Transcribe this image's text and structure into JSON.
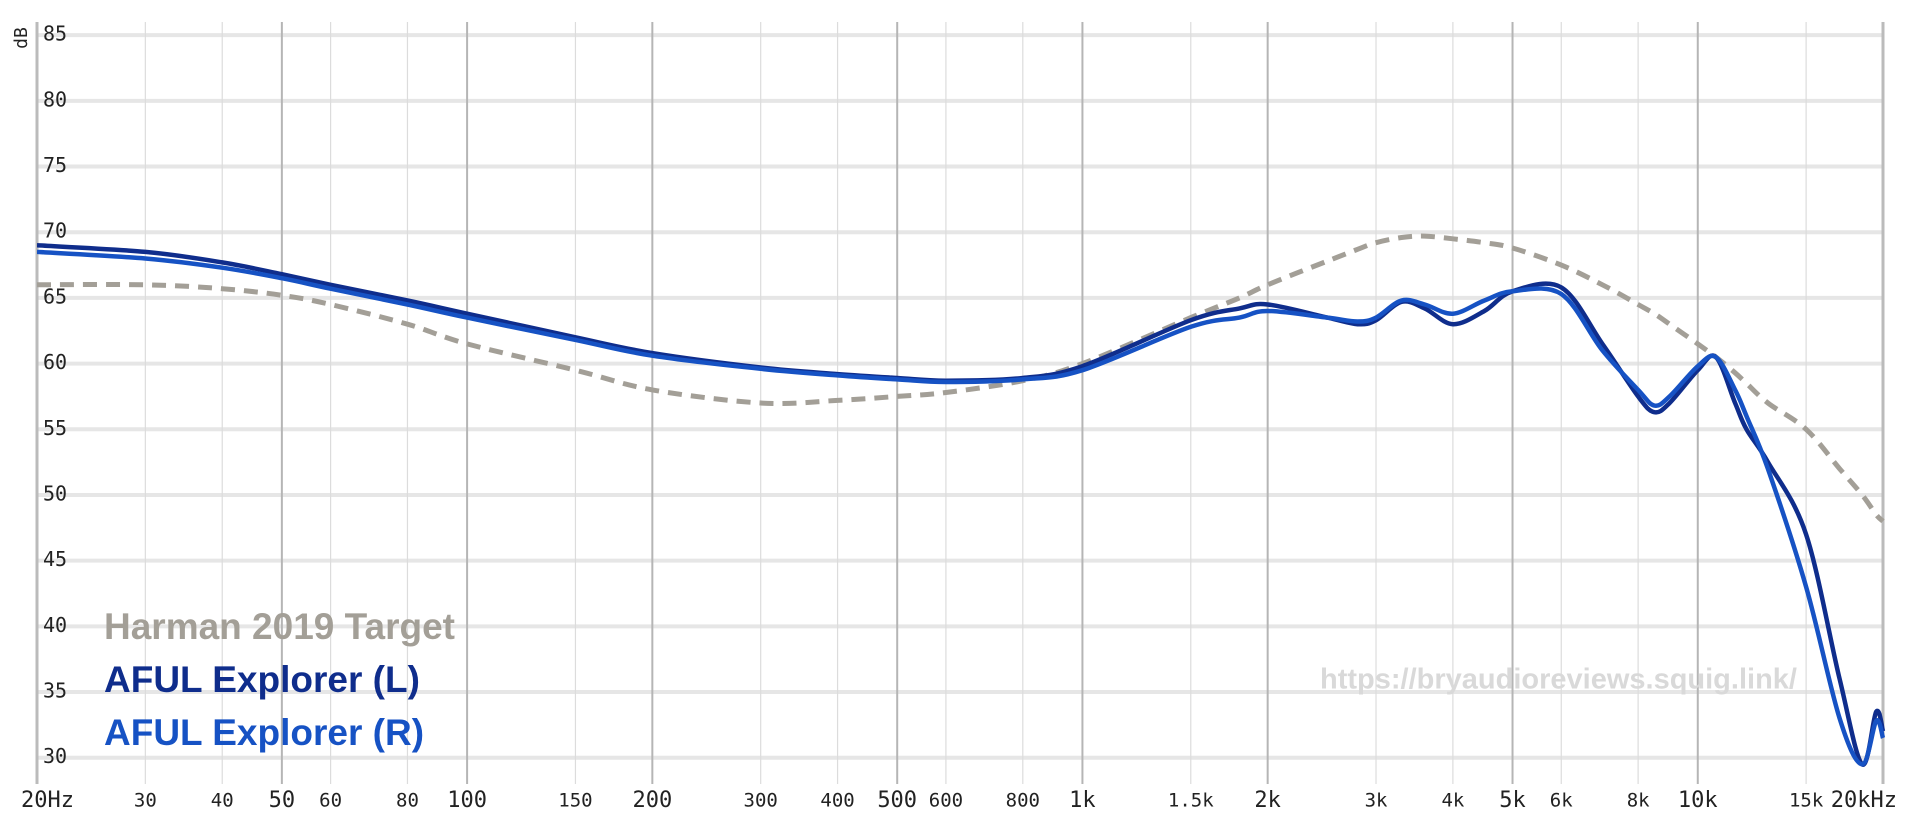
{
  "chart_data": {
    "type": "line",
    "ylabel": "dB",
    "watermark": "https://bryaudioreviews.squig.link/",
    "log_x": true,
    "grid": true,
    "x": [
      20,
      30,
      40,
      50,
      60,
      80,
      100,
      150,
      200,
      300,
      400,
      500,
      600,
      800,
      1000,
      1500,
      1800,
      2000,
      2500,
      2800,
      3000,
      3300,
      3600,
      4000,
      4500,
      5000,
      6000,
      7000,
      8000,
      8500,
      9000,
      10000,
      10700,
      11500,
      12000,
      13000,
      15000,
      17000,
      18500,
      19500,
      20000
    ],
    "series": [
      {
        "name": "Harman 2019 Target",
        "color": "#a39f97",
        "dashed": true,
        "values": [
          66,
          66,
          65.7,
          65.2,
          64.5,
          63,
          61.5,
          59.5,
          58,
          57,
          57.2,
          57.5,
          57.8,
          58.7,
          60,
          63.5,
          65,
          66,
          67.8,
          68.7,
          69.2,
          69.6,
          69.7,
          69.5,
          69.2,
          68.8,
          67.5,
          66,
          64.5,
          63.8,
          63,
          61.5,
          60.5,
          59.3,
          58.5,
          57,
          55,
          52,
          50,
          48.5,
          48
        ]
      },
      {
        "name": "AFUL Explorer (L)",
        "color": "#0f2d8c",
        "dashed": false,
        "values": [
          69,
          68.5,
          67.7,
          66.8,
          66,
          64.8,
          63.8,
          62,
          60.8,
          59.7,
          59.2,
          58.9,
          58.7,
          58.9,
          59.8,
          63.3,
          64.2,
          64.5,
          63.5,
          63,
          63.3,
          64.7,
          64.2,
          63,
          64,
          65.5,
          65.8,
          61.5,
          57.5,
          56.3,
          57,
          59.5,
          60.5,
          57,
          55,
          52.5,
          47,
          36,
          29.5,
          33.5,
          32
        ]
      },
      {
        "name": "AFUL Explorer (R)",
        "color": "#1652c4",
        "dashed": false,
        "values": [
          68.5,
          68,
          67.3,
          66.5,
          65.7,
          64.5,
          63.5,
          61.8,
          60.6,
          59.6,
          59.1,
          58.8,
          58.6,
          58.8,
          59.5,
          62.8,
          63.5,
          64,
          63.5,
          63.2,
          63.5,
          64.8,
          64.5,
          63.8,
          64.8,
          65.5,
          65.3,
          61,
          58,
          56.8,
          57.5,
          59.8,
          60.5,
          58,
          56,
          52,
          43,
          33,
          29.5,
          32.8,
          31.5
        ]
      }
    ],
    "xlim": [
      20,
      20000
    ],
    "ylim": [
      28,
      86
    ],
    "xticks": [
      {
        "value": 20,
        "label": "20Hz"
      },
      30,
      40,
      50,
      60,
      80,
      100,
      150,
      200,
      300,
      400,
      500,
      600,
      800,
      {
        "value": 1000,
        "label": "1k"
      },
      {
        "value": 1500,
        "label": "1.5k"
      },
      {
        "value": 2000,
        "label": "2k"
      },
      {
        "value": 3000,
        "label": "3k"
      },
      {
        "value": 4000,
        "label": "4k"
      },
      {
        "value": 5000,
        "label": "5k"
      },
      {
        "value": 6000,
        "label": "6k"
      },
      {
        "value": 8000,
        "label": "8k"
      },
      {
        "value": 10000,
        "label": "10k"
      },
      {
        "value": 15000,
        "label": "15k"
      },
      {
        "value": 20000,
        "label": "20kHz"
      }
    ],
    "yticks": [
      30,
      35,
      40,
      45,
      50,
      55,
      60,
      65,
      70,
      75,
      80,
      85
    ]
  }
}
